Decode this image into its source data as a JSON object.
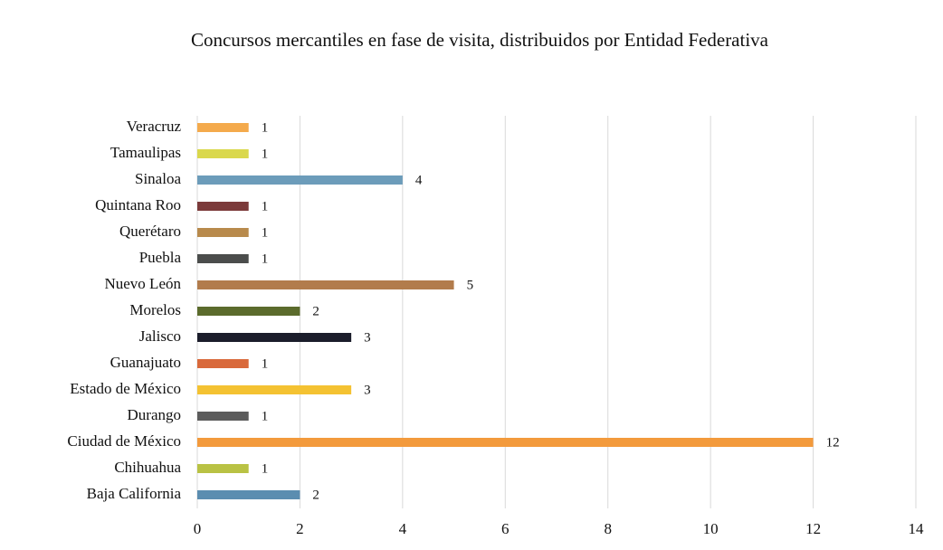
{
  "chart_data": {
    "type": "barh",
    "title": "Concursos mercantiles en fase de visita, distribuidos por Entidad Federativa",
    "categories": [
      "Baja California",
      "Chihuahua",
      "Ciudad de México",
      "Durango",
      "Estado de México",
      "Guanajuato",
      "Jalisco",
      "Morelos",
      "Nuevo León",
      "Puebla",
      "Querétaro",
      "Quintana Roo",
      "Sinaloa",
      "Tamaulipas",
      "Veracruz"
    ],
    "values": [
      2,
      1,
      12,
      1,
      3,
      1,
      3,
      2,
      5,
      1,
      1,
      1,
      4,
      1,
      1
    ],
    "colors": [
      "#5b8db0",
      "#b9c244",
      "#f39a3c",
      "#5c5c5c",
      "#f4c232",
      "#d9693b",
      "#1b1d2b",
      "#5b6b2c",
      "#b27c4c",
      "#4b4d4c",
      "#b88a4c",
      "#7b3a3a",
      "#6c9cba",
      "#dad84c",
      "#f4aa4c"
    ],
    "xlim": [
      0,
      14
    ],
    "xticks": [
      0,
      2,
      4,
      6,
      8,
      10,
      12,
      14
    ],
    "grid": true
  }
}
